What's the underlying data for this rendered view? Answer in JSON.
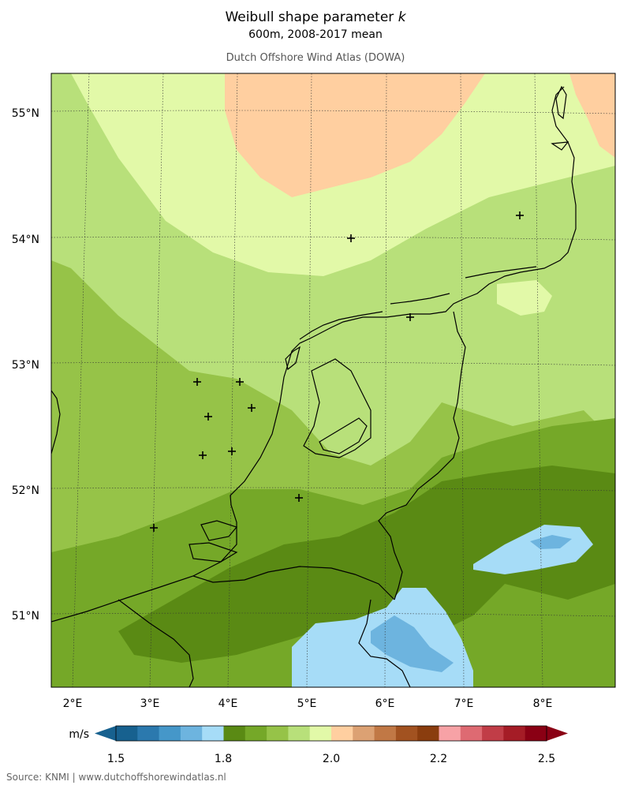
{
  "header": {
    "title_prefix": "Weibull shape parameter ",
    "title_symbol": "k",
    "subtitle": "600m, 2008-2017 mean",
    "source_title": "Dutch Offshore Wind Atlas (DOWA)"
  },
  "map": {
    "lat_labels": [
      "55°N",
      "54°N",
      "53°N",
      "52°N",
      "51°N"
    ],
    "lon_labels": [
      "2°E",
      "3°E",
      "4°E",
      "5°E",
      "6°E",
      "7°E",
      "8°E"
    ],
    "markers_count": 11
  },
  "colorbar": {
    "unit": "m/s",
    "tick_labels": [
      "1.5",
      "1.8",
      "2.0",
      "2.2",
      "2.5"
    ],
    "colors": [
      "#17618f",
      "#2b79ae",
      "#4597c9",
      "#6db4df",
      "#a6dcf7",
      "#5a8a14",
      "#75a828",
      "#96c348",
      "#b8e07a",
      "#e2f9a8",
      "#ffcfa0",
      "#dca173",
      "#c17845",
      "#a25220",
      "#8a3d0e",
      "#f7a2a6",
      "#de6a72",
      "#c13d47",
      "#a51c26",
      "#8a0014"
    ]
  },
  "footer": {
    "text": "Source: KNMI | www.dutchoffshorewindatlas.nl"
  },
  "legend_colors": {
    "land_dark_green": "#5a8a14",
    "mid_green": "#75a828",
    "light_green": "#96c348",
    "pale_green": "#b8e07a",
    "very_pale_green": "#e2f9a8",
    "peach": "#ffcfa0",
    "light_blue": "#a6dcf7",
    "mid_blue": "#6db4df"
  }
}
